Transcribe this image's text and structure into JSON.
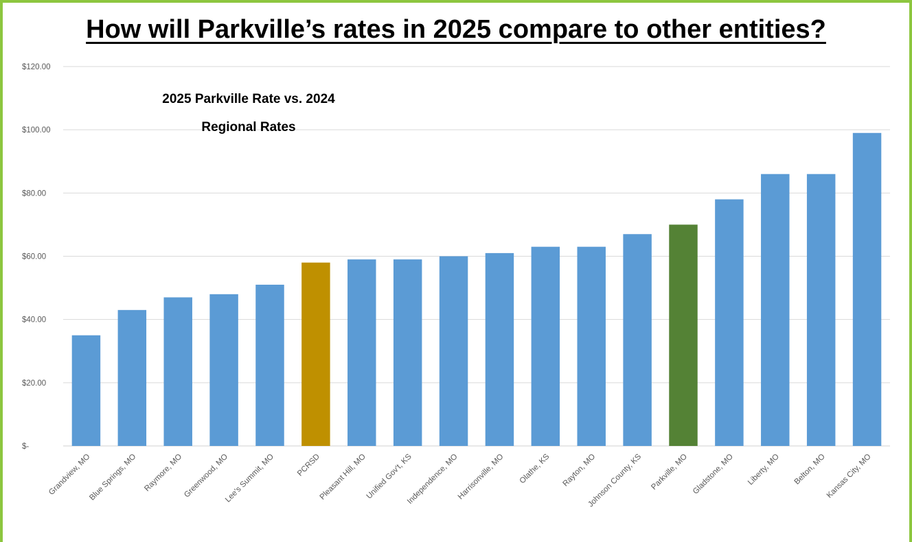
{
  "page_title": "How will Parkville’s rates in 2025 compare to other entities?",
  "colors": {
    "border": "#8dc63f",
    "default_bar": "#5b9bd5",
    "pcrsd_bar": "#bf9000",
    "parkville_bar": "#548235",
    "gridline": "#d9d9d9",
    "axis_text": "#595959"
  },
  "chart_data": {
    "type": "bar",
    "title_lines": [
      "2025 Parkville Rate vs. 2024",
      "Regional Rates"
    ],
    "xlabel": "",
    "ylabel": "",
    "ylim": [
      0,
      120
    ],
    "grid": true,
    "legend": "none",
    "yticks": [
      {
        "value": 0,
        "label": "$-"
      },
      {
        "value": 20,
        "label": "$20.00"
      },
      {
        "value": 40,
        "label": "$40.00"
      },
      {
        "value": 60,
        "label": "$60.00"
      },
      {
        "value": 80,
        "label": "$80.00"
      },
      {
        "value": 100,
        "label": "$100.00"
      },
      {
        "value": 120,
        "label": "$120.00"
      }
    ],
    "categories": [
      "Grandview, MO",
      "Blue Springs, MO",
      "Raymore, MO",
      "Greenwood, MO",
      "Lee's Summit, MO",
      "PCRSD",
      "Pleasant Hill, MO",
      "Unified Gov't, KS",
      "Independence, MO",
      "Harrisonville, MO",
      "Olathe, KS",
      "Rayton, MO",
      "Johnson County, KS",
      "Parkville, MO",
      "Gladstone, MO",
      "Liberty, MO",
      "Belton, MO",
      "Kansas City, MO"
    ],
    "values": [
      35,
      43,
      47,
      48,
      51,
      58,
      59,
      59,
      60,
      61,
      63,
      63,
      67,
      70,
      78,
      86,
      86,
      99
    ],
    "bar_colors": [
      "#5b9bd5",
      "#5b9bd5",
      "#5b9bd5",
      "#5b9bd5",
      "#5b9bd5",
      "#bf9000",
      "#5b9bd5",
      "#5b9bd5",
      "#5b9bd5",
      "#5b9bd5",
      "#5b9bd5",
      "#5b9bd5",
      "#5b9bd5",
      "#548235",
      "#5b9bd5",
      "#5b9bd5",
      "#5b9bd5",
      "#5b9bd5"
    ]
  }
}
